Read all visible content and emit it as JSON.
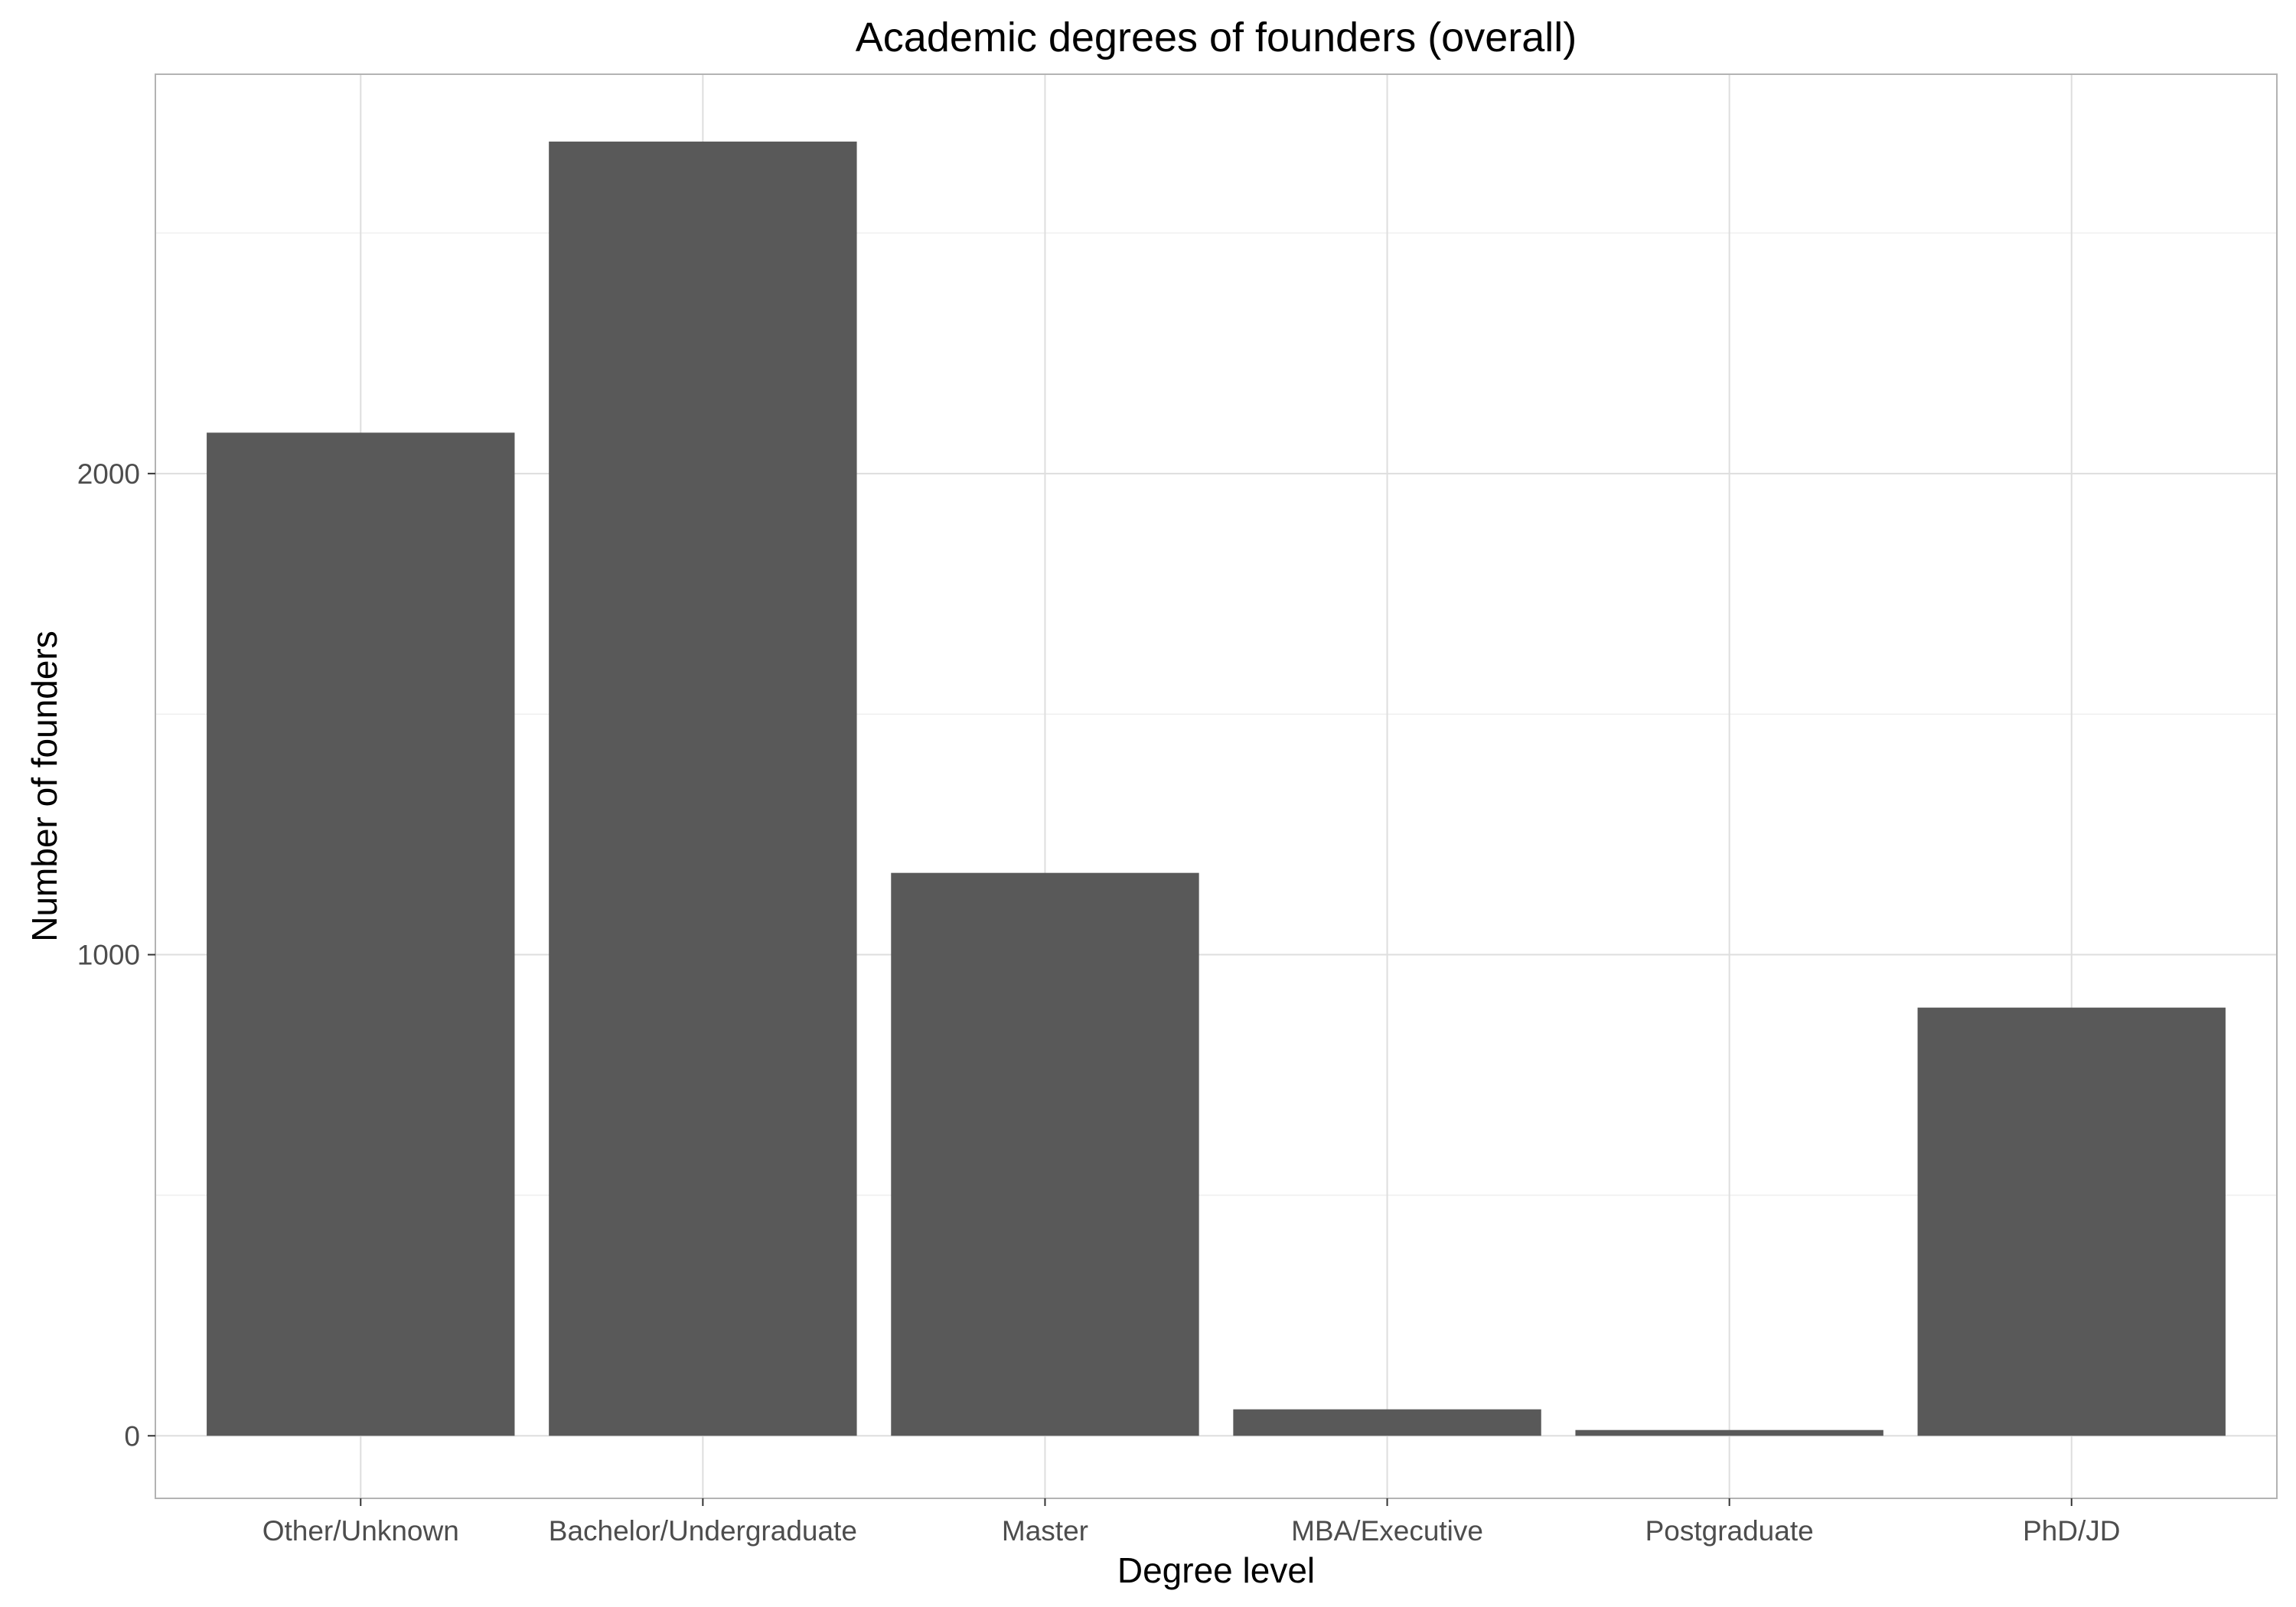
{
  "chart_data": {
    "type": "bar",
    "title": "Academic degrees of founders (overall)",
    "xlabel": "Degree level",
    "ylabel": "Number of founders",
    "categories": [
      "Other/Unknown",
      "Bachelor/Undergraduate",
      "Master",
      "MBA/Executive",
      "Postgraduate",
      "PhD/JD"
    ],
    "values": [
      2085,
      2690,
      1170,
      55,
      12,
      890
    ],
    "ylim": [
      -130,
      2830
    ],
    "yticks": [
      0,
      1000,
      2000
    ],
    "ytick_labels": [
      "0",
      "1000",
      "2000"
    ],
    "grid": true,
    "legend": "none",
    "colors": {
      "bar": "#595959",
      "grid_major": "#dedede",
      "grid_minor": "#efefef",
      "panel_border": "#b3b3b3"
    }
  }
}
